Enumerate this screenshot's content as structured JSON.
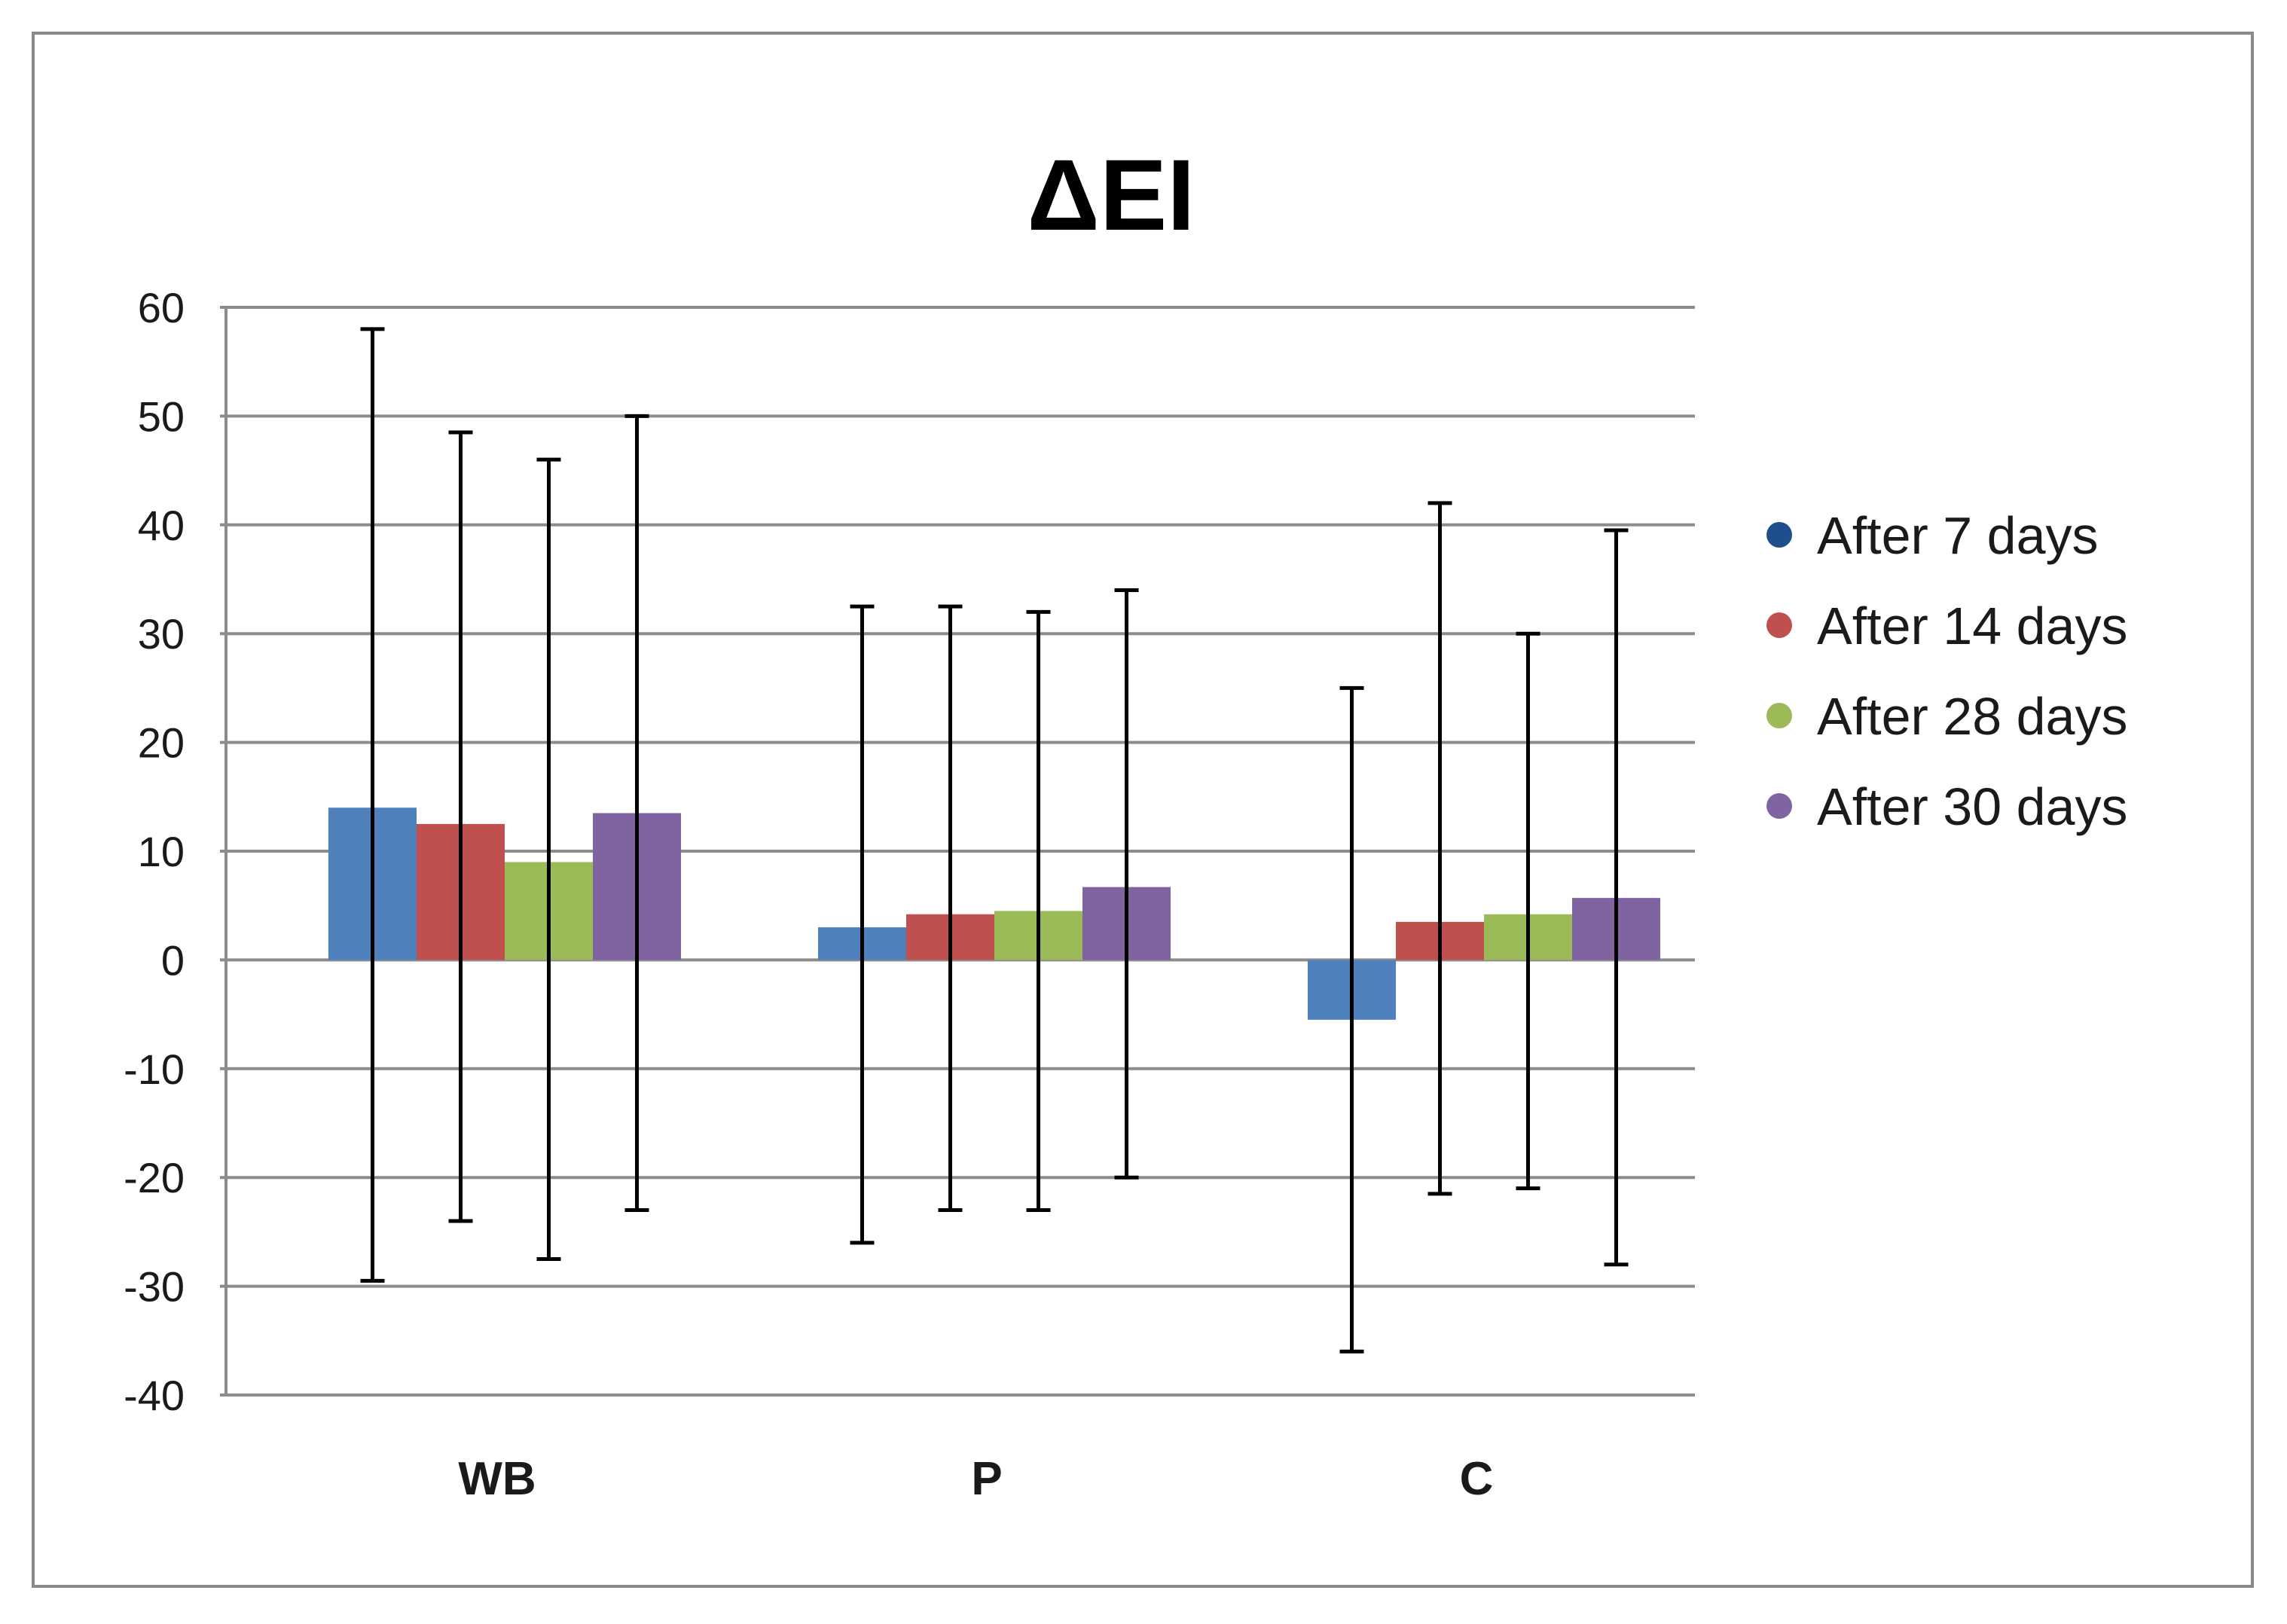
{
  "chart_data": {
    "type": "bar",
    "title": "ΔEI",
    "categories": [
      "WB",
      "P",
      "C"
    ],
    "ylim": [
      -40,
      60
    ],
    "yticks": [
      60,
      50,
      40,
      30,
      20,
      10,
      0,
      -10,
      -20,
      -30,
      -40
    ],
    "grid": true,
    "legend_position": "right",
    "series": [
      {
        "name": "After 7 days",
        "color": "#4F81BD",
        "values": [
          14,
          3,
          -5.5
        ],
        "error_high": [
          58,
          32.5,
          25
        ],
        "error_low": [
          -29.5,
          -26,
          -36
        ]
      },
      {
        "name": "After 14 days",
        "color": "#C0504D",
        "values": [
          12.5,
          4.2,
          3.5
        ],
        "error_high": [
          48.5,
          32.5,
          42
        ],
        "error_low": [
          -24,
          -23,
          -21.5
        ]
      },
      {
        "name": "After 28 days",
        "color": "#9BBB59",
        "values": [
          9,
          4.5,
          4.2
        ],
        "error_high": [
          46,
          32,
          30
        ],
        "error_low": [
          -27.5,
          -23,
          -21
        ]
      },
      {
        "name": "After 30 days",
        "color": "#8064A2",
        "values": [
          13.5,
          6.7,
          5.7
        ],
        "error_high": [
          50,
          34,
          39.5
        ],
        "error_low": [
          -23,
          -20,
          -28
        ]
      }
    ],
    "legend_marker_colors": [
      "#1F4E8C",
      "#C0504D",
      "#9BBB59",
      "#8064A2"
    ]
  }
}
